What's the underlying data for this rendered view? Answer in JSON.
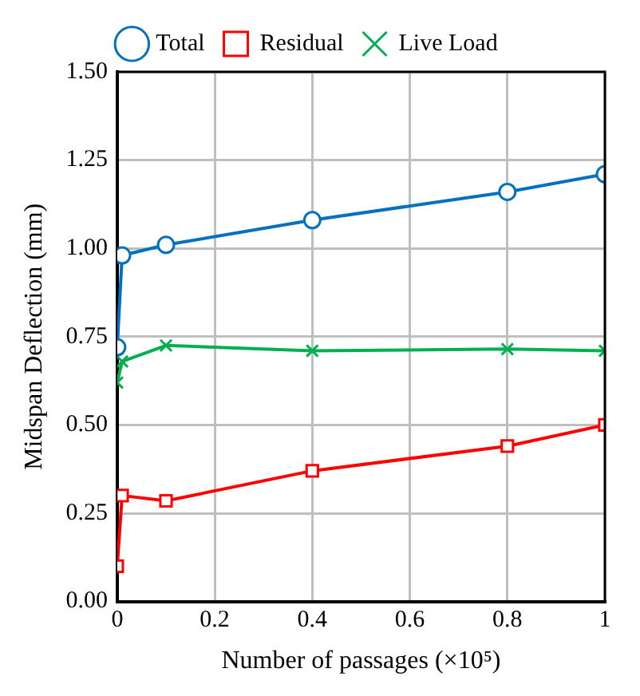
{
  "chart_data": {
    "type": "line",
    "xlabel": "Number of passages (×10⁵)",
    "ylabel": "Midspan Deflection (mm)",
    "x": [
      0,
      0.01,
      0.1,
      0.4,
      0.8,
      1
    ],
    "xlim": [
      0,
      1
    ],
    "xticks": [
      0,
      0.2,
      0.4,
      0.6,
      0.8,
      1
    ],
    "ylim": [
      0,
      1.5
    ],
    "yticks": [
      {
        "value": 0,
        "label": "0.00"
      },
      {
        "value": 0.25,
        "label": "0.25"
      },
      {
        "value": 0.5,
        "label": "0.50"
      },
      {
        "value": 0.75,
        "label": "0.75"
      },
      {
        "value": 1,
        "label": "1.00"
      },
      {
        "value": 1.25,
        "label": "1.25"
      },
      {
        "value": 1.5,
        "label": "1.50"
      }
    ],
    "grid": true,
    "legend": "top",
    "line_style": "solid",
    "series": [
      {
        "name": "Total",
        "color": "#0070c0",
        "marker": "circle",
        "values": [
          0.72,
          0.98,
          1.01,
          1.08,
          1.16,
          1.21
        ]
      },
      {
        "name": "Residual",
        "color": "#ff0000",
        "marker": "square",
        "values": [
          0.1,
          0.3,
          0.285,
          0.37,
          0.44,
          0.5
        ]
      },
      {
        "name": "Live Load",
        "color": "#00b050",
        "marker": "cross",
        "values": [
          0.62,
          0.68,
          0.725,
          0.71,
          0.715,
          0.71
        ]
      }
    ]
  }
}
